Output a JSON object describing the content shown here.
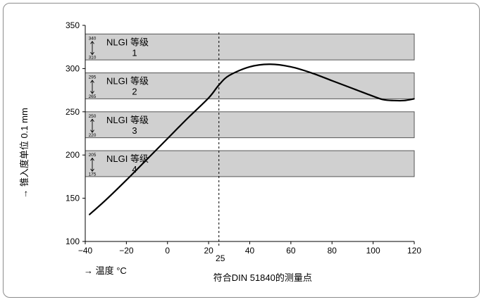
{
  "chart_data": {
    "type": "line",
    "title": "",
    "xlabel": "→ 温度 °C",
    "ylabel": "→ 锥入度单位 0.1 mm",
    "xlim": [
      -40,
      120
    ],
    "ylim": [
      100,
      350
    ],
    "x_ticks": [
      -40,
      -20,
      0,
      20,
      40,
      60,
      80,
      100,
      120
    ],
    "y_ticks": [
      100,
      150,
      200,
      250,
      300,
      350
    ],
    "grid": false,
    "bands": [
      {
        "label": "NLGI 等级",
        "grade": "1",
        "range_top": "340",
        "range_bottom": "310",
        "y_top": 340,
        "y_bottom": 310
      },
      {
        "label": "NLGI 等级",
        "grade": "2",
        "range_top": "295",
        "range_bottom": "265",
        "y_top": 295,
        "y_bottom": 265
      },
      {
        "label": "NLGI 等级",
        "grade": "3",
        "range_top": "250",
        "range_bottom": "220",
        "y_top": 250,
        "y_bottom": 220
      },
      {
        "label": "NLGI 等级",
        "grade": "4",
        "range_top": "205",
        "range_bottom": "175",
        "y_top": 205,
        "y_bottom": 175
      }
    ],
    "reference_line": {
      "x": 25,
      "label_value": "25",
      "label_text": "符合DIN 51840的测量点"
    },
    "series": [
      {
        "x": [
          -38,
          -30,
          -20,
          -10,
          0,
          10,
          20,
          25,
          30,
          40,
          50,
          60,
          70,
          80,
          90,
          100,
          105,
          110,
          115,
          120
        ],
        "y": [
          131,
          148,
          171,
          195,
          219,
          243,
          266,
          281,
          292,
          302,
          305,
          302,
          295,
          286,
          277,
          268,
          264,
          263,
          263,
          265
        ]
      }
    ],
    "colors": {
      "band_fill": "#d0d0d0",
      "band_stroke": "#555555",
      "line": "#000000"
    }
  }
}
